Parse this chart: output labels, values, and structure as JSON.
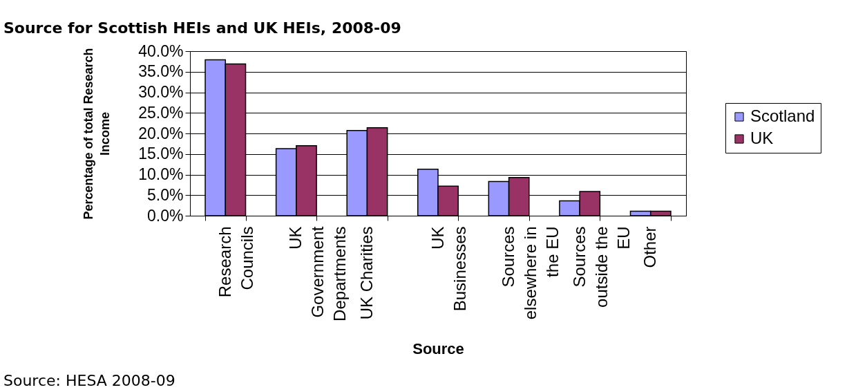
{
  "chart_data": {
    "type": "bar",
    "title": "Source for Scottish HEIs and UK HEIs, 2008-09",
    "xlabel": "Source",
    "ylabel": "Percentage of total Research Income",
    "categories": [
      "Research Councils",
      "UK Government Departments",
      "UK Charities",
      "UK Businesses",
      "Sources elsewhere in the EU",
      "Sources outside the EU",
      "Other"
    ],
    "series": [
      {
        "name": "Scotland",
        "color": "#9999ff",
        "values": [
          37.9,
          16.3,
          20.7,
          11.3,
          8.3,
          3.6,
          1.1
        ]
      },
      {
        "name": "UK",
        "color": "#993366",
        "values": [
          36.9,
          17.0,
          21.4,
          7.2,
          9.3,
          5.9,
          1.1
        ]
      }
    ],
    "ylim": [
      0,
      40
    ],
    "yticks": [
      {
        "value": 0,
        "label": "0.0%"
      },
      {
        "value": 5,
        "label": "5.0%"
      },
      {
        "value": 10,
        "label": "10.0%"
      },
      {
        "value": 15,
        "label": "15.0%"
      },
      {
        "value": 20,
        "label": "20.0%"
      },
      {
        "value": 25,
        "label": "25.0%"
      },
      {
        "value": 30,
        "label": "30.0%"
      },
      {
        "value": 35,
        "label": "35.0%"
      },
      {
        "value": 40,
        "label": "40.0%"
      }
    ],
    "grid": "y",
    "legend": "right",
    "annotations": [
      "Source: HESA 2008-09"
    ]
  }
}
